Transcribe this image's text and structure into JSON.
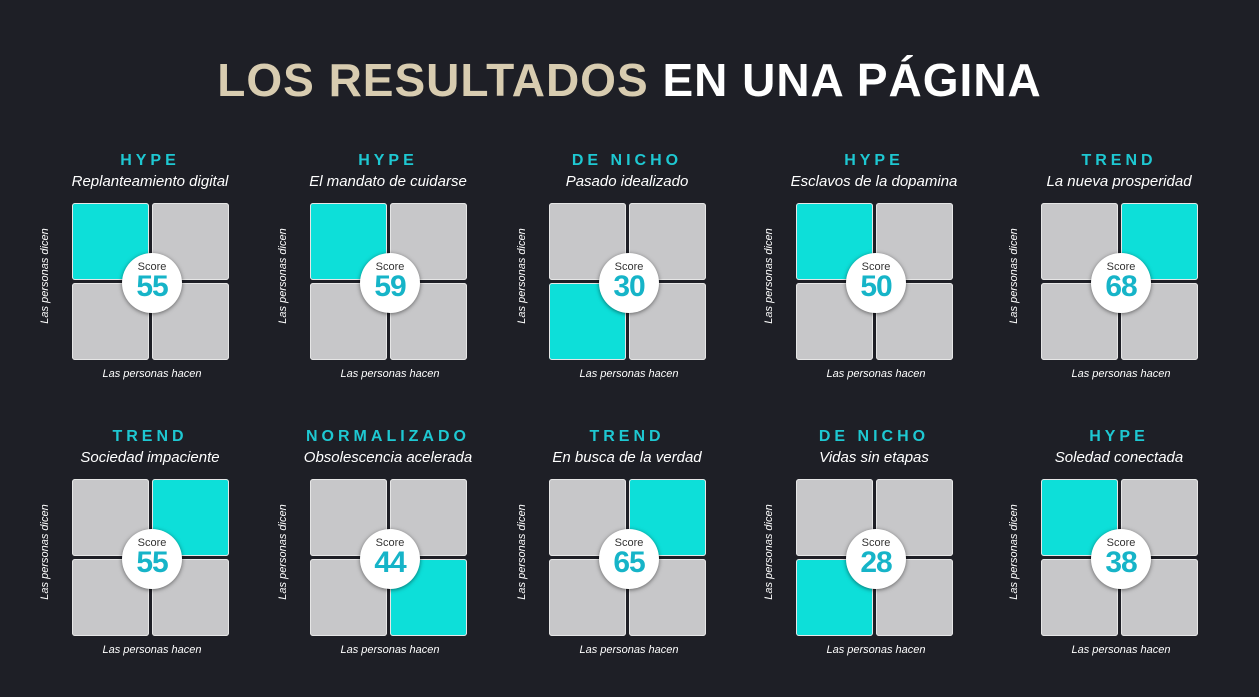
{
  "title": {
    "part1": "LOS RESULTADOS",
    "part2": "EN UNA PÁGINA"
  },
  "axis": {
    "x_label": "Las personas hacen",
    "y_label": "Las personas dicen"
  },
  "score_label": "Score",
  "colors": {
    "highlight": "#0ddfd9",
    "quadrant": "#c7c7c9",
    "category": "#1ec8d2",
    "title_accent": "#d8ccb0",
    "background": "#1e1f26"
  },
  "cards": [
    {
      "category": "HYPE",
      "name": "Replanteamiento digital",
      "score": "55",
      "highlight": "top-left"
    },
    {
      "category": "HYPE",
      "name": "El mandato de cuidarse",
      "score": "59",
      "highlight": "top-left"
    },
    {
      "category": "DE NICHO",
      "name": "Pasado idealizado",
      "score": "30",
      "highlight": "bottom-left"
    },
    {
      "category": "HYPE",
      "name": "Esclavos de la dopamina",
      "score": "50",
      "highlight": "top-left"
    },
    {
      "category": "TREND",
      "name": "La nueva prosperidad",
      "score": "68",
      "highlight": "top-right"
    },
    {
      "category": "TREND",
      "name": "Sociedad impaciente",
      "score": "55",
      "highlight": "top-right"
    },
    {
      "category": "NORMALIZADO",
      "name": "Obsolescencia acelerada",
      "score": "44",
      "highlight": "bottom-right"
    },
    {
      "category": "TREND",
      "name": "En busca de la verdad",
      "score": "65",
      "highlight": "top-right"
    },
    {
      "category": "DE NICHO",
      "name": "Vidas sin etapas",
      "score": "28",
      "highlight": "bottom-left"
    },
    {
      "category": "HYPE",
      "name": "Soledad conectada",
      "score": "38",
      "highlight": "top-left"
    }
  ]
}
